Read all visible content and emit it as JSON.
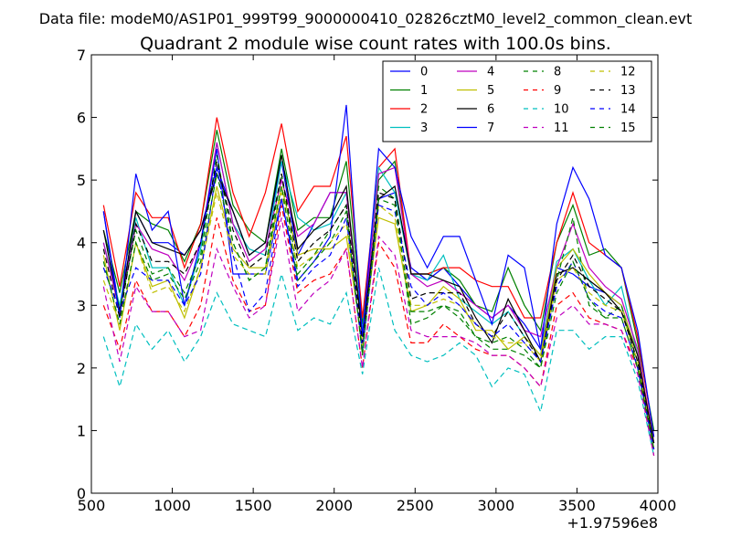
{
  "header": {
    "data_file": "Data file: modeM0/AS1P01_999T99_9000000410_02826cztM0_level2_common_clean.evt"
  },
  "chart_data": {
    "type": "line",
    "title": "Quadrant 2 module wise count rates with 100.0s bins.",
    "xlabel": "",
    "ylabel": "",
    "x_offset_label": "+1.97596e8",
    "xlim": [
      500,
      4000
    ],
    "ylim": [
      0,
      7
    ],
    "x_ticks": [
      500,
      1000,
      1500,
      2000,
      2500,
      3000,
      3500,
      4000
    ],
    "y_ticks": [
      0,
      1,
      2,
      3,
      4,
      5,
      6,
      7
    ],
    "legend_position": "top-right",
    "grid": false,
    "x": [
      575,
      675,
      775,
      875,
      975,
      1075,
      1175,
      1275,
      1375,
      1475,
      1575,
      1675,
      1775,
      1875,
      1975,
      2075,
      2175,
      2275,
      2375,
      2475,
      2575,
      2675,
      2775,
      2875,
      2975,
      3075,
      3175,
      3275,
      3375,
      3475,
      3575,
      3675,
      3775,
      3875,
      3975
    ],
    "series": [
      {
        "name": "0",
        "color": "#0000ff",
        "dash": "solid",
        "values": [
          4.5,
          2.9,
          4.5,
          4.0,
          4.0,
          3.8,
          4.2,
          5.2,
          4.5,
          3.8,
          4.0,
          5.3,
          3.8,
          4.3,
          4.8,
          4.8,
          2.6,
          4.7,
          4.8,
          3.6,
          3.4,
          3.6,
          3.3,
          3.0,
          2.8,
          3.0,
          2.7,
          2.3,
          3.6,
          3.5,
          3.3,
          3.2,
          3.0,
          2.2,
          0.8
        ]
      },
      {
        "name": "1",
        "color": "#008000",
        "dash": "solid",
        "values": [
          4.2,
          3.2,
          4.5,
          4.3,
          4.2,
          3.7,
          4.3,
          5.8,
          4.6,
          4.2,
          4.0,
          5.5,
          4.2,
          4.4,
          4.4,
          5.3,
          2.7,
          5.0,
          5.3,
          3.5,
          3.5,
          3.6,
          3.4,
          3.0,
          2.9,
          3.6,
          3.0,
          2.6,
          4.0,
          4.6,
          3.8,
          3.9,
          3.6,
          2.4,
          1.0
        ]
      },
      {
        "name": "2",
        "color": "#ff0000",
        "dash": "solid",
        "values": [
          4.6,
          3.3,
          4.8,
          4.4,
          4.4,
          3.6,
          4.3,
          6.0,
          4.8,
          4.1,
          4.8,
          5.9,
          4.5,
          4.9,
          4.9,
          5.7,
          2.8,
          5.2,
          5.5,
          3.5,
          3.5,
          3.6,
          3.6,
          3.4,
          3.3,
          3.3,
          2.8,
          2.8,
          4.0,
          4.8,
          4.0,
          3.8,
          3.6,
          2.5,
          0.9
        ]
      },
      {
        "name": "3",
        "color": "#00bfbf",
        "dash": "solid",
        "values": [
          4.0,
          3.0,
          4.4,
          3.6,
          3.6,
          3.0,
          3.9,
          5.6,
          4.3,
          3.9,
          3.8,
          5.3,
          4.4,
          4.2,
          4.3,
          4.8,
          2.6,
          5.2,
          4.8,
          3.5,
          3.4,
          3.8,
          3.1,
          2.9,
          2.7,
          2.9,
          2.5,
          2.2,
          3.7,
          3.9,
          3.4,
          3.0,
          3.3,
          2.2,
          0.8
        ]
      },
      {
        "name": "4",
        "color": "#bf00bf",
        "dash": "solid",
        "values": [
          4.0,
          2.9,
          4.3,
          3.9,
          3.8,
          3.4,
          4.0,
          5.6,
          4.3,
          3.7,
          3.9,
          5.0,
          4.1,
          4.3,
          4.8,
          4.8,
          2.5,
          5.1,
          5.2,
          3.5,
          3.3,
          3.4,
          3.2,
          3.0,
          2.8,
          3.0,
          2.6,
          2.5,
          3.6,
          4.3,
          3.6,
          3.3,
          3.1,
          2.3,
          0.8
        ]
      },
      {
        "name": "5",
        "color": "#bfbf00",
        "dash": "solid",
        "values": [
          3.8,
          2.6,
          4.0,
          3.3,
          3.4,
          2.8,
          3.6,
          4.9,
          3.9,
          3.6,
          3.6,
          4.9,
          3.8,
          3.9,
          3.9,
          4.1,
          2.4,
          4.4,
          4.3,
          2.9,
          3.0,
          3.3,
          3.1,
          2.6,
          2.6,
          2.3,
          2.5,
          2.2,
          3.6,
          3.9,
          3.5,
          3.2,
          3.0,
          2.2,
          0.8
        ]
      },
      {
        "name": "6",
        "color": "#000000",
        "dash": "solid",
        "values": [
          4.2,
          2.9,
          4.5,
          4.0,
          3.9,
          3.8,
          4.2,
          5.1,
          4.5,
          3.8,
          4.0,
          5.4,
          3.9,
          4.2,
          4.4,
          4.9,
          2.5,
          4.7,
          4.9,
          3.5,
          3.5,
          3.4,
          3.3,
          2.8,
          2.4,
          3.1,
          2.6,
          2.1,
          3.5,
          3.6,
          3.4,
          3.2,
          2.9,
          2.2,
          0.8
        ]
      },
      {
        "name": "7",
        "color": "#0000ff",
        "dash": "solid",
        "values": [
          4.5,
          2.8,
          5.1,
          4.2,
          4.5,
          3.0,
          4.0,
          5.5,
          3.5,
          3.5,
          3.5,
          4.7,
          3.4,
          3.7,
          4.1,
          6.2,
          2.5,
          5.5,
          5.2,
          4.1,
          3.6,
          4.1,
          4.1,
          3.4,
          2.7,
          3.8,
          3.6,
          2.3,
          4.3,
          5.2,
          4.7,
          3.8,
          3.6,
          2.6,
          0.9
        ]
      },
      {
        "name": "8",
        "color": "#008000",
        "dash": "dashdot",
        "values": [
          3.6,
          2.9,
          4.2,
          3.5,
          3.6,
          3.2,
          3.8,
          5.4,
          4.0,
          3.4,
          3.6,
          5.1,
          3.5,
          3.8,
          4.2,
          4.6,
          2.2,
          4.9,
          4.7,
          2.7,
          2.8,
          3.0,
          2.8,
          2.5,
          2.3,
          2.3,
          2.2,
          2.0,
          3.4,
          4.4,
          3.0,
          2.8,
          3.0,
          2.0,
          0.7
        ]
      },
      {
        "name": "9",
        "color": "#ff0000",
        "dash": "dashdot",
        "values": [
          3.0,
          2.3,
          3.4,
          2.9,
          2.9,
          2.5,
          3.0,
          4.4,
          3.4,
          2.9,
          3.0,
          4.6,
          3.2,
          3.4,
          3.5,
          3.9,
          2.0,
          4.0,
          3.6,
          2.4,
          2.4,
          2.7,
          2.5,
          2.3,
          2.2,
          2.2,
          2.0,
          1.7,
          3.0,
          3.2,
          2.8,
          2.7,
          2.6,
          2.0,
          0.6
        ]
      },
      {
        "name": "10",
        "color": "#00bfbf",
        "dash": "dashdot",
        "values": [
          2.5,
          1.7,
          2.7,
          2.3,
          2.6,
          2.1,
          2.5,
          3.2,
          2.7,
          2.6,
          2.5,
          3.5,
          2.6,
          2.8,
          2.7,
          3.2,
          1.9,
          3.6,
          2.6,
          2.2,
          2.1,
          2.2,
          2.4,
          2.2,
          1.7,
          2.0,
          1.9,
          1.3,
          2.6,
          2.6,
          2.3,
          2.5,
          2.5,
          1.8,
          0.6
        ]
      },
      {
        "name": "11",
        "color": "#bf00bf",
        "dash": "dashdot",
        "values": [
          3.3,
          2.1,
          3.3,
          2.9,
          2.9,
          2.5,
          2.6,
          3.9,
          3.3,
          2.8,
          3.0,
          4.4,
          2.9,
          3.2,
          3.4,
          3.9,
          2.0,
          4.1,
          3.8,
          2.6,
          2.5,
          2.5,
          2.5,
          2.4,
          2.2,
          2.2,
          2.0,
          1.7,
          2.8,
          3.0,
          2.7,
          2.7,
          2.6,
          1.9,
          0.6
        ]
      },
      {
        "name": "12",
        "color": "#bfbf00",
        "dash": "dashdot",
        "values": [
          3.4,
          2.7,
          4.0,
          3.2,
          3.3,
          2.9,
          3.6,
          4.8,
          3.8,
          3.5,
          3.5,
          4.8,
          3.6,
          3.8,
          4.0,
          4.3,
          2.3,
          4.6,
          4.4,
          3.0,
          3.0,
          3.1,
          3.0,
          2.7,
          2.5,
          2.4,
          2.4,
          2.1,
          3.4,
          3.6,
          3.2,
          3.0,
          2.9,
          2.1,
          0.7
        ]
      },
      {
        "name": "13",
        "color": "#000000",
        "dash": "dashdot",
        "values": [
          3.9,
          2.8,
          4.3,
          3.7,
          3.7,
          3.5,
          4.0,
          5.3,
          4.2,
          3.6,
          3.8,
          5.1,
          3.7,
          4.0,
          4.2,
          4.6,
          2.4,
          4.8,
          4.7,
          3.1,
          3.2,
          3.2,
          3.2,
          2.7,
          2.5,
          2.9,
          2.5,
          2.1,
          3.4,
          3.8,
          3.3,
          3.1,
          2.9,
          2.1,
          0.7
        ]
      },
      {
        "name": "14",
        "color": "#0000ff",
        "dash": "dashdot",
        "values": [
          3.6,
          2.9,
          3.6,
          3.4,
          3.4,
          3.0,
          3.5,
          5.2,
          3.8,
          2.9,
          3.2,
          4.7,
          3.3,
          3.6,
          3.8,
          4.4,
          2.3,
          4.6,
          4.5,
          3.3,
          3.0,
          3.2,
          3.0,
          2.7,
          2.5,
          2.7,
          2.4,
          2.1,
          3.3,
          3.7,
          3.1,
          2.9,
          2.8,
          2.0,
          0.7
        ]
      },
      {
        "name": "15",
        "color": "#008000",
        "dash": "dashdot",
        "values": [
          3.7,
          2.7,
          4.0,
          3.4,
          3.5,
          3.1,
          3.7,
          5.1,
          4.0,
          3.4,
          3.6,
          4.9,
          3.4,
          3.7,
          4.0,
          4.5,
          2.2,
          4.7,
          4.6,
          2.9,
          2.9,
          3.0,
          2.9,
          2.5,
          2.4,
          2.5,
          2.3,
          2.0,
          3.2,
          3.7,
          3.1,
          2.8,
          2.8,
          2.0,
          0.7
        ]
      }
    ]
  }
}
